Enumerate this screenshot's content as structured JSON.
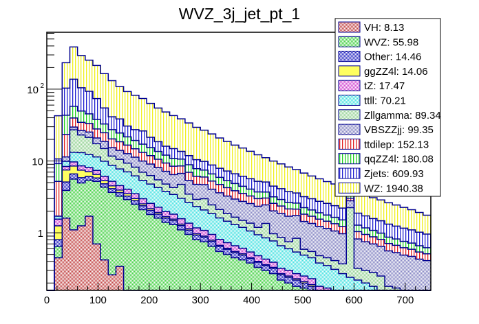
{
  "chart_data": {
    "type": "bar",
    "subtype": "stacked-histogram",
    "title": "WVZ_3j_jet_pt_1",
    "xlabel": "",
    "ylabel": "",
    "xlim": [
      0,
      750
    ],
    "ylim": [
      0.158,
      620
    ],
    "yscale": "log",
    "bin_width": 15,
    "x_ticks": [
      0,
      100,
      200,
      300,
      400,
      500,
      600,
      700
    ],
    "x_tick_labels": [
      "0",
      "100",
      "200",
      "300",
      "400",
      "500",
      "600",
      "700"
    ],
    "y_ticks": [
      1,
      10,
      100
    ],
    "y_tick_labels": [
      "1",
      "10",
      "10^2"
    ],
    "legend_position": "top-right",
    "bin_edges_start": 0,
    "series": [
      {
        "name": "VH",
        "label": "VH: 8.13",
        "color": "#c04040",
        "pattern": "checker",
        "values": [
          0,
          0.45,
          1.6,
          1.1,
          1.25,
          1.7,
          0.7,
          0.42,
          0.26,
          0.34,
          0,
          0,
          0,
          0,
          0,
          0,
          0,
          0,
          0,
          0,
          0,
          0,
          0,
          0,
          0,
          0,
          0,
          0,
          0,
          0,
          0,
          0,
          0,
          0,
          0,
          0,
          0,
          0,
          0,
          0,
          0,
          0,
          0,
          0,
          0,
          0,
          0,
          0,
          0,
          0
        ]
      },
      {
        "name": "WVZ",
        "label": "WVZ: 55.98",
        "color": "#40d040",
        "pattern": "checker",
        "values": [
          0,
          0.2,
          2.3,
          4.5,
          3.7,
          3.7,
          4.5,
          3.9,
          3.4,
          2.9,
          2.9,
          2.5,
          2.1,
          1.8,
          1.6,
          1.4,
          1.3,
          1.1,
          0.95,
          0.8,
          0.75,
          0.65,
          0.55,
          0.5,
          0.45,
          0.42,
          0.38,
          0.33,
          0.3,
          0.27,
          0.22,
          0.2,
          0.18,
          0.17,
          0.15,
          0.12,
          0.11,
          0.1,
          0.09,
          0.08,
          0.07,
          0.06,
          0.05,
          0.05,
          0.04,
          0.04,
          0.03,
          0.03,
          0.02,
          0.02
        ]
      },
      {
        "name": "Other",
        "label": "Other: 14.46",
        "color": "#2020c0",
        "pattern": "checker",
        "values": [
          0,
          0.15,
          1.2,
          1.0,
          0.9,
          0.7,
          0.6,
          0.5,
          0.45,
          0.4,
          0.35,
          0.3,
          0.28,
          0.25,
          0.22,
          0.2,
          0.18,
          0.16,
          0.14,
          0.13,
          0.12,
          0.11,
          0.1,
          0.09,
          0.08,
          0.07,
          0.06,
          0.06,
          0.05,
          0.05,
          0.04,
          0.04,
          0.04,
          0.03,
          0.03,
          0.03,
          0.03,
          0.02,
          0.02,
          0.02,
          0.02,
          0.02,
          0.02,
          0.01,
          0.01,
          0.01,
          0.01,
          0.01,
          0.01,
          0.01
        ]
      },
      {
        "name": "ggZZ4l",
        "label": "ggZZ4l: 14.06",
        "color": "#ffff60",
        "pattern": "solid",
        "values": [
          0,
          0.45,
          2.4,
          1.9,
          1.6,
          1.0,
          0.7,
          0.5,
          0.4,
          0.3,
          0.25,
          0.2,
          0.15,
          0.12,
          0.1,
          0.08,
          0.07,
          0.06,
          0.05,
          0.04,
          0.03,
          0.03,
          0.02,
          0.02,
          0.02,
          0.02,
          0.01,
          0.01,
          0.01,
          0.01,
          0.01,
          0.01,
          0.01,
          0.01,
          0.01,
          0,
          0,
          0,
          0,
          0,
          0,
          0,
          0,
          0,
          0,
          0,
          0,
          0,
          0,
          0
        ]
      },
      {
        "name": "tZ",
        "label": "tZ: 17.47",
        "color": "#d040d0",
        "pattern": "checker",
        "values": [
          0,
          0.3,
          0.9,
          1.2,
          1.1,
          1.0,
          0.9,
          0.8,
          0.7,
          0.6,
          0.55,
          0.5,
          0.45,
          0.4,
          0.35,
          0.3,
          0.27,
          0.25,
          0.22,
          0.2,
          0.18,
          0.16,
          0.14,
          0.12,
          0.11,
          0.1,
          0.09,
          0.08,
          0.07,
          0.06,
          0.05,
          0.05,
          0.04,
          0.04,
          0.04,
          0.03,
          0.03,
          0.03,
          0.02,
          0.02,
          0.02,
          0.02,
          0.02,
          0.01,
          0.01,
          0.01,
          0.01,
          0.01,
          0.01,
          0.01
        ]
      },
      {
        "name": "ttll",
        "label": "ttll: 70.21",
        "color": "#40e0e0",
        "pattern": "checker",
        "values": [
          0,
          0.15,
          1.5,
          3.5,
          4.5,
          4.2,
          4.0,
          3.8,
          3.5,
          3.2,
          3.0,
          2.7,
          2.4,
          2.2,
          2.0,
          1.8,
          1.6,
          1.45,
          1.3,
          1.15,
          1.0,
          0.9,
          0.8,
          0.72,
          0.64,
          0.58,
          0.52,
          0.46,
          0.42,
          0.38,
          0.34,
          0.3,
          0.27,
          0.24,
          0.22,
          0.2,
          0.18,
          0.16,
          0.14,
          0.12,
          0.11,
          0.1,
          0.09,
          0.08,
          0.07,
          0.06,
          0.05,
          0.05,
          0.04,
          0.04
        ]
      },
      {
        "name": "Zllgamma",
        "label": "Zllgamma: 89.34",
        "color": "#90d090",
        "pattern": "checker",
        "values": [
          0,
          0,
          0,
          14,
          10,
          9,
          6,
          5,
          3,
          2.8,
          2.3,
          2.0,
          1.6,
          1.5,
          1.2,
          1.0,
          0.85,
          1.7,
          0.8,
          0.6,
          0.9,
          0.6,
          0.5,
          0.4,
          0.35,
          0.3,
          0.3,
          0.25,
          0.5,
          0.2,
          0.2,
          0.15,
          0.3,
          0.1,
          0.1,
          0.1,
          0.1,
          0.1,
          0.1,
          2.0,
          0.1,
          0.1,
          0.1,
          0.1,
          0.05,
          0.05,
          0.05,
          0.05,
          0.05,
          0.05
        ]
      },
      {
        "name": "VBSZZjj",
        "label": "VBSZZjj: 99.35",
        "color": "#8080c0",
        "pattern": "checker",
        "values": [
          0,
          0,
          1.5,
          2.5,
          3.5,
          4.0,
          3.5,
          3.8,
          3.6,
          3.5,
          3.3,
          3.1,
          3.0,
          2.8,
          2.6,
          2.4,
          2.2,
          2.0,
          1.9,
          1.8,
          1.7,
          1.6,
          1.5,
          1.4,
          1.3,
          1.25,
          1.2,
          1.15,
          1.1,
          1.05,
          1.0,
          0.95,
          0.9,
          0.85,
          0.8,
          0.75,
          0.7,
          0.65,
          0.6,
          0.55,
          0.5,
          0.45,
          0.42,
          0.4,
          0.38,
          0.36,
          0.34,
          0.32,
          0.3,
          0.28
        ]
      },
      {
        "name": "ttdilep",
        "label": "ttdilep: 152.13",
        "color": "#e02020",
        "pattern": "vlines",
        "values": [
          0,
          3.5,
          12,
          10,
          8,
          8,
          7,
          6,
          5,
          4.5,
          4,
          3.5,
          3.2,
          2.8,
          2.5,
          2.2,
          2.0,
          1.8,
          1.6,
          1.4,
          1.3,
          1.2,
          1.1,
          1.0,
          0.9,
          0.8,
          0.7,
          0.65,
          0.6,
          0.55,
          0.5,
          0.45,
          0.4,
          0.38,
          0.35,
          0.32,
          0.3,
          0.28,
          0.26,
          0.24,
          0.22,
          0.2,
          0.18,
          0.16,
          0.15,
          0.14,
          0.13,
          0.12,
          0.11,
          0.1
        ]
      },
      {
        "name": "qqZZ4l",
        "label": "qqZZ4l: 180.08",
        "color": "#20d020",
        "pattern": "vlines",
        "values": [
          0,
          4.0,
          20,
          18,
          15,
          12,
          10,
          8,
          7,
          6,
          5,
          4.5,
          4,
          3.5,
          3.0,
          2.7,
          2.4,
          2.1,
          1.9,
          1.7,
          1.5,
          1.35,
          1.2,
          1.1,
          1.0,
          0.9,
          0.8,
          0.72,
          0.65,
          0.6,
          0.55,
          0.5,
          0.45,
          0.42,
          0.38,
          0.35,
          0.32,
          0.3,
          0.28,
          0.26,
          0.24,
          0.22,
          0.2,
          0.18,
          0.16,
          0.15,
          0.14,
          0.13,
          0.12,
          0.11
        ]
      },
      {
        "name": "Zjets",
        "label": "Zjets: 609.93",
        "color": "#2020d0",
        "pattern": "vlines",
        "values": [
          0,
          1.5,
          60,
          80,
          55,
          48,
          36,
          22,
          14,
          14,
          9,
          8,
          9,
          6,
          5,
          4,
          4,
          3,
          3,
          2.6,
          2.4,
          2.2,
          2.0,
          1.9,
          1.8,
          1.7,
          1.6,
          1.5,
          1.4,
          1.3,
          1.2,
          1.1,
          1.0,
          0.95,
          0.9,
          0.85,
          0.8,
          0.75,
          0.7,
          0.65,
          0.6,
          0.55,
          0.5,
          0.48,
          0.45,
          0.42,
          0.4,
          0.38,
          0.36,
          0.34
        ]
      },
      {
        "name": "WZ",
        "label": "WZ: 1940.38",
        "color": "#f0f020",
        "pattern": "vlines",
        "values": [
          0,
          32,
          130,
          250,
          190,
          160,
          140,
          110,
          90,
          70,
          62,
          55,
          48,
          42,
          36,
          32,
          28,
          25,
          22,
          19,
          17,
          15,
          13,
          11.5,
          10,
          9,
          8,
          7,
          6,
          5.5,
          5,
          4.5,
          4,
          3.6,
          3.2,
          2.9,
          2.6,
          2.4,
          2.2,
          2.0,
          1.8,
          1.6,
          1.5,
          1.4,
          1.3,
          1.2,
          1.1,
          1.0,
          0.9,
          0.8
        ]
      }
    ]
  }
}
